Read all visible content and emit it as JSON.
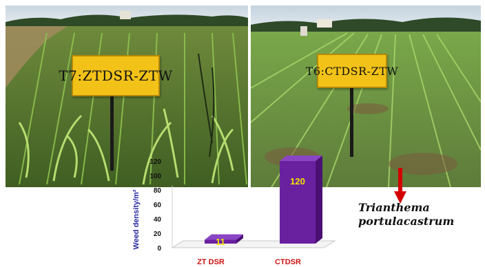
{
  "photos": [
    {
      "sign_text": "T7:ZTDSR-ZTW"
    },
    {
      "sign_text": "T6:CTDSR-ZTW"
    }
  ],
  "species": {
    "line1": "Trianthema",
    "line2": "portulacastrum"
  },
  "colors": {
    "bar": "#6a21a0",
    "bar_top": "#8a45c4",
    "bar_side": "#4a1075",
    "value_label": "#f2e600",
    "category_label": "#cc1111",
    "axis_label": "#2a2aa0",
    "arrow": "#d40000",
    "sign": "#f2c218"
  },
  "chart_data": {
    "type": "bar",
    "categories": [
      "ZT DSR",
      "CTDSR"
    ],
    "values": [
      11,
      120
    ],
    "ylabel": "Weed density/m²",
    "ylim": [
      0,
      120
    ],
    "yticks": [
      0,
      20,
      40,
      60,
      80,
      100,
      120
    ],
    "data_labels": [
      "11",
      "120"
    ],
    "grid": false,
    "style": "3d-column"
  }
}
